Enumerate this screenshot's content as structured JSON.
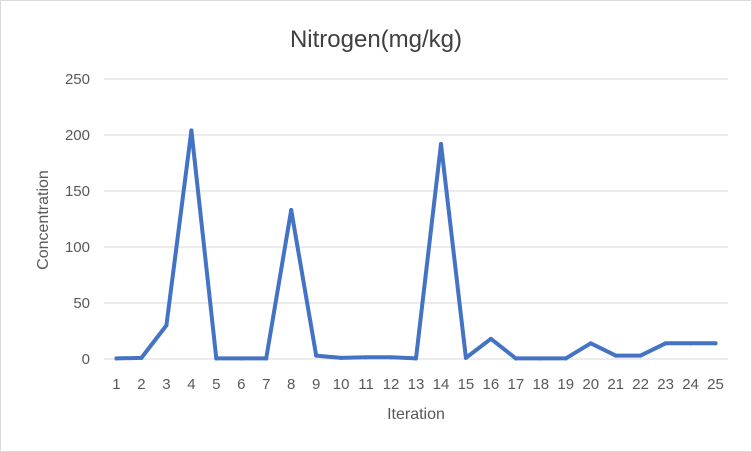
{
  "chart_data": {
    "type": "line",
    "title": "Nitrogen(mg/kg)",
    "xlabel": "Iteration",
    "ylabel": "Concentration",
    "ylim": [
      0,
      250
    ],
    "yticks": [
      "0",
      "50",
      "100",
      "150",
      "200",
      "250"
    ],
    "categories": [
      "1",
      "2",
      "3",
      "4",
      "5",
      "6",
      "7",
      "8",
      "9",
      "10",
      "11",
      "12",
      "13",
      "14",
      "15",
      "16",
      "17",
      "18",
      "19",
      "20",
      "21",
      "22",
      "23",
      "24",
      "25"
    ],
    "series": [
      {
        "values": [
          0.5,
          1,
          30,
          204,
          0.5,
          0.5,
          0.5,
          133,
          3,
          1,
          1.5,
          1.5,
          0.5,
          192,
          1,
          18,
          0.5,
          0.5,
          0.5,
          14,
          3,
          3,
          14,
          14,
          14
        ],
        "color": "#4472c4"
      }
    ],
    "grid": true,
    "gridColor": "#d9d9d9"
  }
}
